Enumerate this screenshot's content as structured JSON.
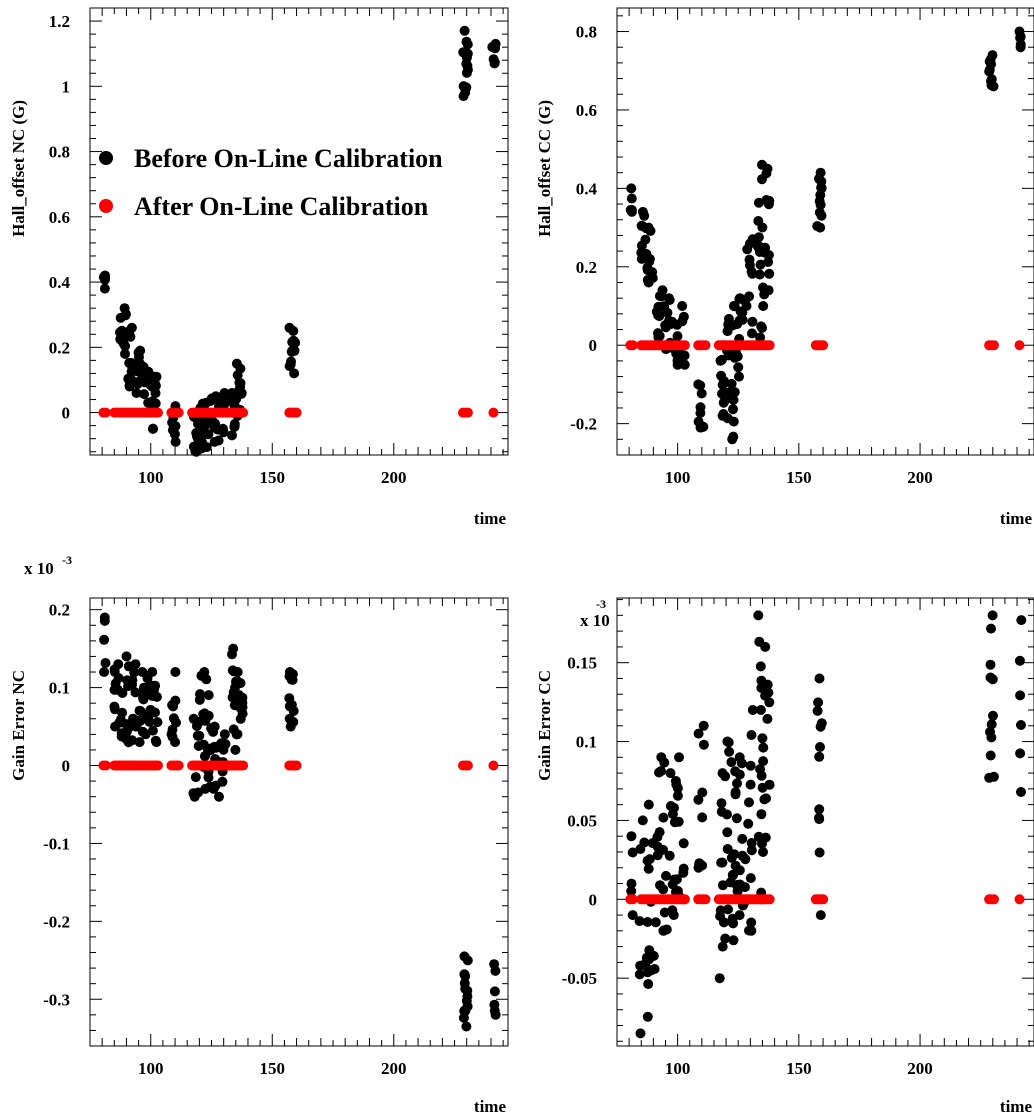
{
  "figure": {
    "background": "#ffffff"
  },
  "chart_data": [
    {
      "type": "scatter",
      "ylabel": "Hall_offset NC (G)",
      "xlabel": "time",
      "xlim": [
        75,
        247
      ],
      "ylim": [
        -0.13,
        1.24
      ],
      "xticks": [
        100,
        150,
        200
      ],
      "yticks": [
        0,
        0.2,
        0.4,
        0.6,
        0.8,
        1,
        1.2
      ],
      "ytick_labels": [
        "0",
        "0.2",
        "0.4",
        "0.6",
        "0.8",
        "1",
        "1.2"
      ],
      "exponent_label": null,
      "legend": {
        "placement": "upper-left",
        "entries": [
          {
            "label": "Before On-Line Calibration",
            "color": "#000000"
          },
          {
            "label": "After On-Line Calibration",
            "color": "#ff0000"
          }
        ]
      },
      "series": [
        {
          "name": "Before On-Line Calibration",
          "color": "#000000",
          "groups": [
            [
              80.5,
              81.5,
              0.38,
              0.42,
              5
            ],
            [
              87,
              90,
              0.18,
              0.32,
              14
            ],
            [
              90,
              93,
              0.08,
              0.26,
              12
            ],
            [
              93,
              97,
              0.06,
              0.19,
              12
            ],
            [
              97,
              100,
              0.03,
              0.14,
              10
            ],
            [
              100,
              103,
              -0.05,
              0.11,
              12
            ],
            [
              108.5,
              111,
              -0.09,
              0.02,
              8
            ],
            [
              117.5,
              120,
              -0.12,
              0.0,
              10
            ],
            [
              120,
              124,
              -0.11,
              0.03,
              16
            ],
            [
              124,
              128,
              -0.09,
              0.05,
              14
            ],
            [
              128,
              131,
              -0.06,
              0.06,
              10
            ],
            [
              133,
              135,
              -0.07,
              0.06,
              8
            ],
            [
              135,
              138,
              -0.01,
              0.15,
              14
            ],
            [
              157,
              159.5,
              0.12,
              0.26,
              12
            ],
            [
              228.5,
              230.5,
              0.97,
              1.17,
              14
            ],
            [
              240.5,
              242,
              1.07,
              1.13,
              6
            ]
          ]
        },
        {
          "name": "After On-Line Calibration",
          "color": "#ff0000",
          "groups": [
            [
              80.5,
              81.5,
              0,
              0,
              2
            ],
            [
              85,
              103,
              0,
              0,
              24
            ],
            [
              108.5,
              111.5,
              0,
              0,
              4
            ],
            [
              117,
              138,
              0,
              0,
              30
            ],
            [
              157,
              160,
              0,
              0,
              5
            ],
            [
              228.5,
              230.5,
              0,
              0,
              3
            ],
            [
              241,
              241,
              0,
              0,
              1
            ]
          ]
        }
      ]
    },
    {
      "type": "scatter",
      "ylabel": "Hall_offset CC (G)",
      "xlabel": "time",
      "xlim": [
        75,
        247
      ],
      "ylim": [
        -0.28,
        0.86
      ],
      "xticks": [
        100,
        150,
        200
      ],
      "yticks": [
        -0.2,
        0,
        0.2,
        0.4,
        0.6,
        0.8
      ],
      "ytick_labels": [
        "-0.2",
        "0",
        "0.2",
        "0.4",
        "0.6",
        "0.8"
      ],
      "exponent_label": null,
      "series": [
        {
          "name": "Before On-Line Calibration",
          "color": "#000000",
          "groups": [
            [
              80.5,
              81.5,
              0.34,
              0.4,
              5
            ],
            [
              85,
              87.5,
              0.22,
              0.34,
              10
            ],
            [
              87.5,
              90,
              0.16,
              0.3,
              10
            ],
            [
              91,
              94,
              0.02,
              0.14,
              12
            ],
            [
              94,
              97,
              -0.01,
              0.12,
              12
            ],
            [
              97,
              101,
              -0.05,
              0.06,
              12
            ],
            [
              101,
              103,
              -0.05,
              0.1,
              6
            ],
            [
              108.5,
              111,
              -0.21,
              -0.1,
              10
            ],
            [
              117.5,
              120,
              -0.18,
              0.0,
              12
            ],
            [
              120,
              124,
              -0.24,
              0.1,
              18
            ],
            [
              124,
              127,
              -0.08,
              0.12,
              12
            ],
            [
              127,
              131,
              0.03,
              0.27,
              12
            ],
            [
              133,
              135,
              0.02,
              0.46,
              14
            ],
            [
              135,
              138,
              0.1,
              0.45,
              14
            ],
            [
              157,
              159.5,
              0.3,
              0.44,
              12
            ],
            [
              228.5,
              230.5,
              0.66,
              0.74,
              10
            ],
            [
              241,
              242,
              0.76,
              0.8,
              5
            ]
          ]
        },
        {
          "name": "After On-Line Calibration",
          "color": "#ff0000",
          "groups": [
            [
              80.5,
              81.5,
              0,
              0,
              2
            ],
            [
              85,
              103,
              0,
              0,
              24
            ],
            [
              108.5,
              111.5,
              0,
              0,
              4
            ],
            [
              117,
              138,
              0,
              0,
              30
            ],
            [
              157,
              160,
              0,
              0,
              5
            ],
            [
              228.5,
              230.5,
              0,
              0,
              3
            ],
            [
              241,
              241,
              0,
              0,
              1
            ]
          ]
        }
      ]
    },
    {
      "type": "scatter",
      "ylabel": "Gain Error NC",
      "xlabel": "time",
      "xlim": [
        75,
        247
      ],
      "ylim": [
        -0.36,
        0.215
      ],
      "xticks": [
        100,
        150,
        200
      ],
      "yticks": [
        -0.3,
        -0.2,
        -0.1,
        0,
        0.1,
        0.2
      ],
      "ytick_labels": [
        "-0.3",
        "-0.2",
        "-0.1",
        "0",
        "0.1",
        "0.2"
      ],
      "exponent_label": {
        "prefix": "x 10",
        "exponent": "-3",
        "placement": "outside-top-left"
      },
      "series": [
        {
          "name": "Before On-Line Calibration",
          "color": "#000000",
          "groups": [
            [
              80.5,
              81.5,
              0.12,
              0.19,
              5
            ],
            [
              85,
              88,
              0.05,
              0.13,
              12
            ],
            [
              88,
              92,
              0.03,
              0.14,
              14
            ],
            [
              92,
              96,
              0.03,
              0.13,
              14
            ],
            [
              96,
              100,
              0.04,
              0.12,
              14
            ],
            [
              100,
              103,
              0.03,
              0.12,
              12
            ],
            [
              108.5,
              111,
              0.03,
              0.12,
              10
            ],
            [
              117.5,
              120,
              -0.04,
              0.06,
              10
            ],
            [
              120,
              124,
              -0.03,
              0.12,
              18
            ],
            [
              124,
              128,
              -0.03,
              0.05,
              14
            ],
            [
              128,
              131,
              -0.04,
              0.04,
              10
            ],
            [
              133,
              135,
              0.02,
              0.15,
              10
            ],
            [
              135,
              138,
              0.04,
              0.12,
              14
            ],
            [
              157,
              159.5,
              0.05,
              0.12,
              12
            ],
            [
              228.5,
              230.5,
              -0.335,
              -0.245,
              14
            ],
            [
              241,
              242,
              -0.32,
              -0.255,
              6
            ]
          ]
        },
        {
          "name": "After On-Line Calibration",
          "color": "#ff0000",
          "groups": [
            [
              80.5,
              81.5,
              0,
              0,
              2
            ],
            [
              85,
              103,
              0,
              0,
              24
            ],
            [
              108.5,
              111.5,
              0,
              0,
              4
            ],
            [
              117,
              138,
              0,
              0,
              30
            ],
            [
              157,
              160,
              0,
              0,
              5
            ],
            [
              228.5,
              230.5,
              0,
              0,
              3
            ],
            [
              241,
              241,
              0,
              0,
              1
            ]
          ]
        }
      ]
    },
    {
      "type": "scatter",
      "ylabel": "Gain Error CC",
      "xlabel": "time",
      "xlim": [
        75,
        247
      ],
      "ylim": [
        -0.093,
        0.191
      ],
      "xticks": [
        100,
        150,
        200
      ],
      "yticks": [
        -0.05,
        0,
        0.05,
        0.1,
        0.15
      ],
      "ytick_labels": [
        "-0.05",
        "0",
        "0.05",
        "0.1",
        "0.15"
      ],
      "exponent_label": {
        "prefix": "x 10",
        "exponent": "-3",
        "placement": "inside-top-left"
      },
      "series": [
        {
          "name": "Before On-Line Calibration",
          "color": "#000000",
          "groups": [
            [
              80.5,
              81.5,
              -0.01,
              0.04,
              5
            ],
            [
              84,
              88,
              -0.085,
              0.05,
              14
            ],
            [
              88,
              92,
              -0.045,
              0.06,
              14
            ],
            [
              92,
              96,
              -0.02,
              0.09,
              14
            ],
            [
              96,
              100,
              -0.01,
              0.08,
              14
            ],
            [
              100,
              103,
              0.0,
              0.09,
              10
            ],
            [
              108.5,
              111,
              0.02,
              0.11,
              10
            ],
            [
              117.5,
              120,
              -0.03,
              0.08,
              12
            ],
            [
              120,
              124,
              -0.026,
              0.1,
              20
            ],
            [
              124,
              128,
              -0.01,
              0.09,
              16
            ],
            [
              128,
              131,
              -0.02,
              0.12,
              12
            ],
            [
              117,
              117.5,
              -0.053,
              -0.05,
              1
            ],
            [
              133,
              135,
              0.0,
              0.18,
              14
            ],
            [
              135,
              138,
              0.03,
              0.16,
              14
            ],
            [
              157,
              159.5,
              -0.01,
              0.14,
              12
            ],
            [
              228.5,
              230.5,
              0.077,
              0.18,
              12
            ],
            [
              241,
              242,
              0.068,
              0.177,
              6
            ]
          ]
        },
        {
          "name": "After On-Line Calibration",
          "color": "#ff0000",
          "groups": [
            [
              80.5,
              81.5,
              0,
              0,
              2
            ],
            [
              85,
              103,
              0,
              0,
              24
            ],
            [
              108.5,
              111.5,
              0,
              0,
              4
            ],
            [
              117,
              138,
              0,
              0,
              30
            ],
            [
              157,
              160,
              0,
              0,
              5
            ],
            [
              228.5,
              230.5,
              0,
              0,
              3
            ],
            [
              241,
              241,
              0,
              0,
              1
            ]
          ]
        }
      ]
    }
  ]
}
